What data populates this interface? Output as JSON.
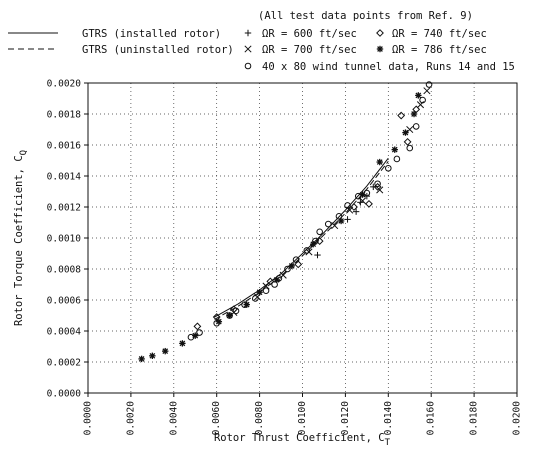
{
  "chart_data": {
    "type": "scatter",
    "xlabel": "Rotor Thrust Coefficient, C",
    "xlabel_sub": "T",
    "ylabel": "Rotor Torque Coefficient, C",
    "ylabel_sub": "Q",
    "xlim": [
      0.0,
      0.02
    ],
    "ylim": [
      0.0,
      0.002
    ],
    "grid": "dotted",
    "x_ticks": [
      "0.0000",
      "0.0020",
      "0.0040",
      "0.0060",
      "0.0080",
      "0.0100",
      "0.0120",
      "0.0140",
      "0.0160",
      "0.0180",
      "0.0200"
    ],
    "y_ticks": [
      "0.0000",
      "0.0002",
      "0.0004",
      "0.0006",
      "0.0008",
      "0.0010",
      "0.0012",
      "0.0014",
      "0.0016",
      "0.0018",
      "0.0020"
    ],
    "legend": {
      "header": "(All test data points from Ref. 9)",
      "entries": [
        {
          "key": "installed",
          "symbol": "solid-line",
          "label": "GTRS (installed rotor)"
        },
        {
          "key": "uninstalled",
          "symbol": "dashed-line",
          "label": "GTRS (uninstalled rotor)"
        },
        {
          "key": "s600",
          "symbol": "+",
          "label": "ΩR = 600 ft/sec"
        },
        {
          "key": "s700",
          "symbol": "×",
          "label": "ΩR = 700 ft/sec"
        },
        {
          "key": "s740",
          "symbol": "◇",
          "label": "ΩR = 740 ft/sec"
        },
        {
          "key": "s786",
          "symbol": "*",
          "label": "ΩR = 786 ft/sec"
        },
        {
          "key": "tunnel",
          "symbol": "○",
          "label": "40 x 80 wind tunnel data, Runs 14 and 15"
        }
      ]
    },
    "series": [
      {
        "key": "installed",
        "type": "line",
        "x": [
          0.0059,
          0.007,
          0.008,
          0.009,
          0.01,
          0.011,
          0.012,
          0.013,
          0.014
        ],
        "y": [
          0.00049,
          0.000575,
          0.000665,
          0.00077,
          0.0009,
          0.001035,
          0.00118,
          0.001335,
          0.001515
        ]
      },
      {
        "key": "uninstalled",
        "type": "line",
        "x": [
          0.0059,
          0.007,
          0.008,
          0.009,
          0.01,
          0.011,
          0.012,
          0.013,
          0.014
        ],
        "y": [
          0.000475,
          0.00056,
          0.00065,
          0.000755,
          0.000885,
          0.00102,
          0.00116,
          0.001315,
          0.001495
        ]
      },
      {
        "key": "s600",
        "symbol": "+",
        "x": [
          0.0107,
          0.0121,
          0.0125,
          0.0127,
          0.013,
          0.0133
        ],
        "y": [
          0.00089,
          0.00112,
          0.00117,
          0.00123,
          0.00127,
          0.00133
        ]
      },
      {
        "key": "s700",
        "symbol": "×",
        "x": [
          0.0068,
          0.0079,
          0.0083,
          0.0091,
          0.0103,
          0.0115,
          0.0122,
          0.0128,
          0.0136,
          0.015,
          0.0155,
          0.0158
        ],
        "y": [
          0.00052,
          0.00062,
          0.00069,
          0.00076,
          0.00091,
          0.00108,
          0.00118,
          0.00124,
          0.00131,
          0.0017,
          0.00186,
          0.00195
        ]
      },
      {
        "key": "s740",
        "symbol": "◇",
        "x": [
          0.0051,
          0.006,
          0.0068,
          0.0085,
          0.0098,
          0.0108,
          0.0124,
          0.0131,
          0.0135,
          0.0146,
          0.0149,
          0.0153
        ],
        "y": [
          0.00043,
          0.00049,
          0.00054,
          0.00072,
          0.00083,
          0.00098,
          0.0012,
          0.00122,
          0.00133,
          0.00179,
          0.00162,
          0.00183
        ]
      },
      {
        "key": "s786",
        "symbol": "*",
        "x": [
          0.0025,
          0.003,
          0.0036,
          0.0044,
          0.005,
          0.0061,
          0.0066,
          0.0074,
          0.008,
          0.0088,
          0.0095,
          0.0105,
          0.0118,
          0.0128,
          0.0136,
          0.0143,
          0.0148,
          0.0152,
          0.0154
        ],
        "y": [
          0.00022,
          0.00024,
          0.00027,
          0.00032,
          0.00037,
          0.00046,
          0.0005,
          0.00057,
          0.00065,
          0.00073,
          0.00082,
          0.00096,
          0.00111,
          0.00128,
          0.00149,
          0.00157,
          0.00168,
          0.0018,
          0.00192
        ]
      },
      {
        "key": "tunnel",
        "symbol": "○",
        "x": [
          0.0048,
          0.0052,
          0.006,
          0.0066,
          0.0069,
          0.0073,
          0.0078,
          0.0083,
          0.0087,
          0.0089,
          0.0093,
          0.0097,
          0.0102,
          0.0106,
          0.0108,
          0.0112,
          0.0117,
          0.0121,
          0.0126,
          0.013,
          0.0135,
          0.014,
          0.0144,
          0.015,
          0.0153,
          0.0156,
          0.0159
        ],
        "y": [
          0.00036,
          0.00039,
          0.00045,
          0.0005,
          0.00053,
          0.00057,
          0.00061,
          0.00066,
          0.0007,
          0.00074,
          0.0008,
          0.00086,
          0.00092,
          0.00098,
          0.00104,
          0.00109,
          0.00114,
          0.00121,
          0.00127,
          0.00129,
          0.00135,
          0.00145,
          0.00151,
          0.00158,
          0.00172,
          0.00189,
          0.00199
        ]
      }
    ]
  }
}
